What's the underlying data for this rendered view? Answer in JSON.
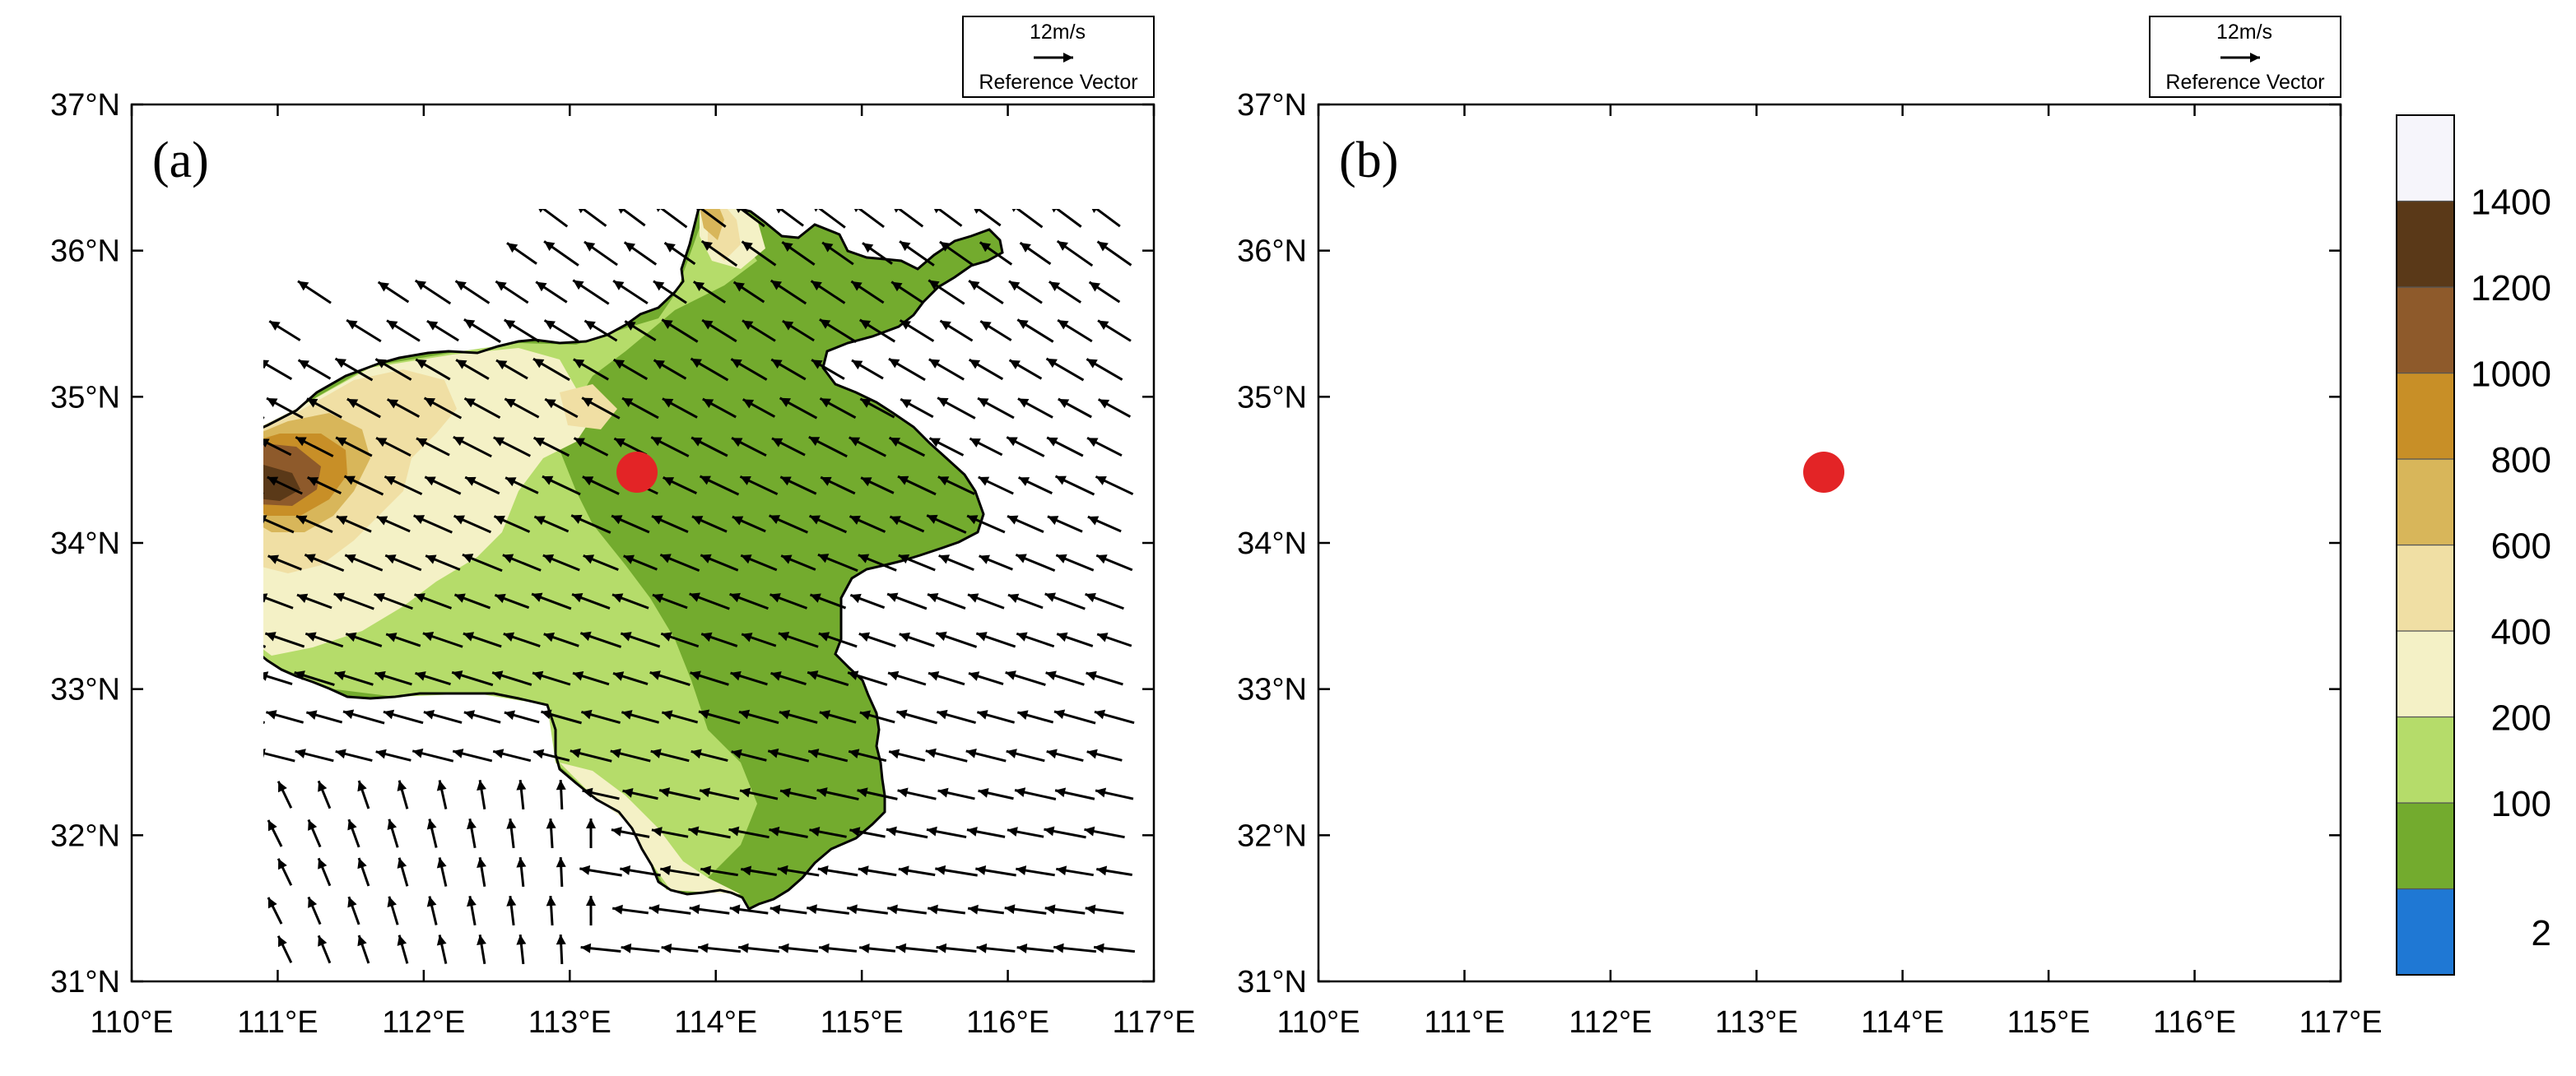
{
  "panels": [
    {
      "id": "a",
      "label": "(a)"
    },
    {
      "id": "b",
      "label": "(b)"
    }
  ],
  "axes": {
    "lon_range": [
      110,
      117
    ],
    "lat_range": [
      31,
      37
    ],
    "x_ticks": [
      "110°E",
      "111°E",
      "112°E",
      "113°E",
      "114°E",
      "115°E",
      "116°E",
      "117°E"
    ],
    "y_ticks": [
      "31°N",
      "32°N",
      "33°N",
      "34°N",
      "35°N",
      "36°N",
      "37°N"
    ]
  },
  "reference_vector": {
    "speed": "12m/s",
    "label": "Reference Vector"
  },
  "marker": {
    "lon": 113.45,
    "lat": 34.47,
    "color": "#e32426"
  },
  "colorbar": {
    "labels": [
      "2",
      "100",
      "200",
      "400",
      "600",
      "800",
      "1000",
      "1200",
      "1400"
    ],
    "colors": [
      "#1f78d4",
      "#73ab2e",
      "#b5dc6a",
      "#f4f1c6",
      "#f0dfa4",
      "#d8b65a",
      "#c88f27",
      "#8e5a2b",
      "#5a3918",
      "#f6f5fb"
    ]
  },
  "legend_icons": [
    "arrow-icon"
  ]
}
